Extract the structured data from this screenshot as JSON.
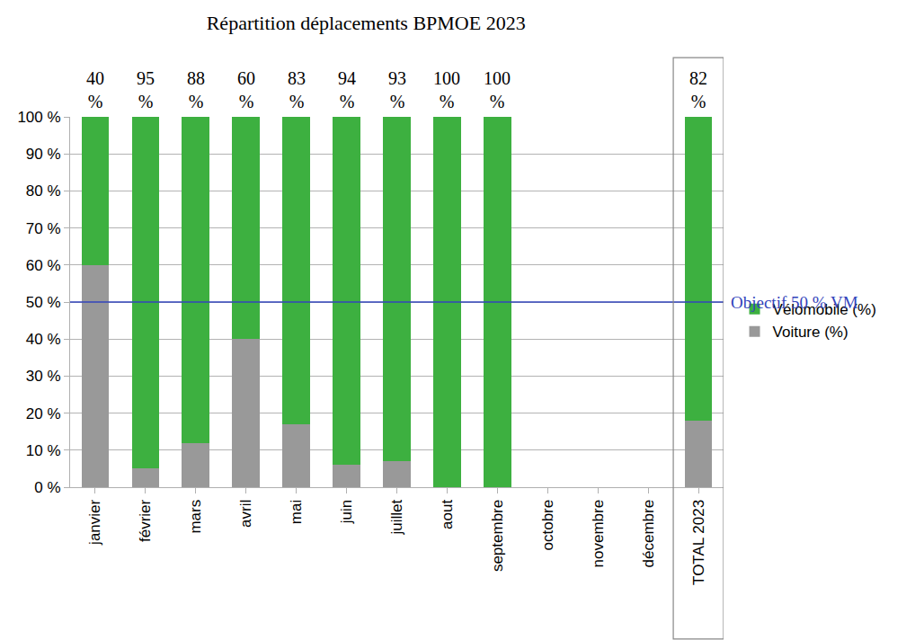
{
  "chart_data": {
    "type": "bar",
    "title": "Répartition déplacements BPMOE 2023",
    "stacked": true,
    "grid": true,
    "legend": "right",
    "categories": [
      "janvier",
      "février",
      "mars",
      "avril",
      "mai",
      "juin",
      "juillet",
      "aout",
      "septembre",
      "octobre",
      "novembre",
      "décembre",
      "TOTAL 2023"
    ],
    "series": [
      {
        "name": "Voiture (%)",
        "color": "#999999",
        "values": [
          60,
          5,
          12,
          40,
          17,
          6,
          7,
          0,
          0,
          null,
          null,
          null,
          18
        ]
      },
      {
        "name": "Vélomobile (%)",
        "color": "#3db040",
        "data_labels": true,
        "values": [
          40,
          95,
          88,
          60,
          83,
          94,
          93,
          100,
          100,
          null,
          null,
          null,
          82
        ],
        "value_labels": [
          "40 %",
          "95 %",
          "88 %",
          "60 %",
          "83 %",
          "94 %",
          "93 %",
          "100 %",
          "100 %",
          null,
          null,
          null,
          "82 %"
        ]
      }
    ],
    "ylim": [
      0,
      100
    ],
    "yticks": [
      {
        "value": 0,
        "label": "0 %"
      },
      {
        "value": 10,
        "label": "10 %"
      },
      {
        "value": 20,
        "label": "20 %"
      },
      {
        "value": 30,
        "label": "30 %"
      },
      {
        "value": 40,
        "label": "40 %"
      },
      {
        "value": 50,
        "label": "50 %"
      },
      {
        "value": 60,
        "label": "60 %"
      },
      {
        "value": 70,
        "label": "70 %"
      },
      {
        "value": 80,
        "label": "80 %"
      },
      {
        "value": 90,
        "label": "90 %"
      },
      {
        "value": 100,
        "label": "100 %"
      }
    ],
    "annotations": [
      {
        "text": "Objectif 50 % VM",
        "y": 50,
        "color": "#3344bb"
      }
    ]
  }
}
